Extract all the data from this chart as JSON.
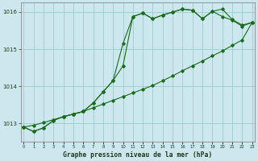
{
  "background_color": "#cce8ee",
  "grid_color": "#99cccc",
  "line_color": "#1a6b1a",
  "title": "Graphe pression niveau de la mer (hPa)",
  "hours": [
    0,
    1,
    2,
    3,
    4,
    5,
    6,
    7,
    8,
    9,
    10,
    11,
    12,
    13,
    14,
    15,
    16,
    17,
    18,
    19,
    20,
    21,
    22,
    23
  ],
  "ylim": [
    1012.5,
    1016.25
  ],
  "yticks": [
    1013,
    1014,
    1015,
    1016
  ],
  "line1": [
    1012.9,
    1012.78,
    1012.88,
    1013.08,
    1013.18,
    1013.25,
    1013.32,
    1013.55,
    1013.85,
    1014.15,
    1015.15,
    1015.88,
    1015.97,
    1015.82,
    1015.92,
    1016.0,
    1016.08,
    1016.05,
    1015.82,
    1016.02,
    1016.08,
    1015.8,
    1015.65,
    1015.72
  ],
  "line2": [
    1012.9,
    1012.78,
    1012.88,
    1013.08,
    1013.18,
    1013.25,
    1013.32,
    1013.55,
    1013.85,
    1014.15,
    1014.55,
    1015.88,
    1015.97,
    1015.82,
    1015.92,
    1016.0,
    1016.08,
    1016.05,
    1015.82,
    1016.02,
    1015.88,
    1015.78,
    1015.62,
    1015.72
  ],
  "line3": [
    1012.9,
    1012.95,
    1013.02,
    1013.1,
    1013.18,
    1013.25,
    1013.32,
    1013.42,
    1013.52,
    1013.62,
    1013.72,
    1013.82,
    1013.92,
    1014.02,
    1014.15,
    1014.28,
    1014.42,
    1014.55,
    1014.68,
    1014.82,
    1014.95,
    1015.1,
    1015.25,
    1015.72
  ]
}
